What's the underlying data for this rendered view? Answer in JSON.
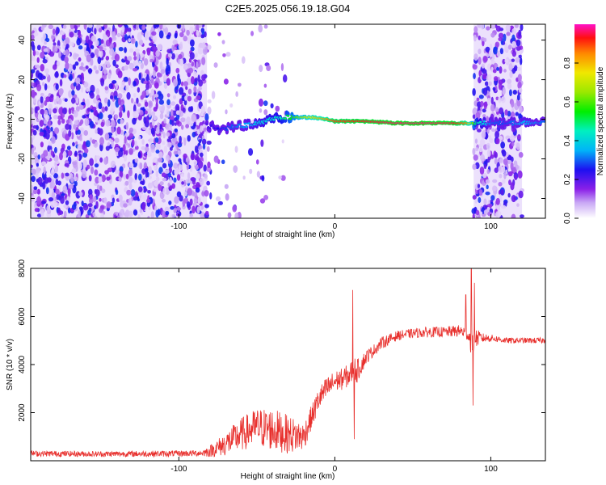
{
  "title": "C2E5.2025.056.19.18.G04",
  "chart_data": [
    {
      "type": "heatmap",
      "xlabel": "Height of straight line (km)",
      "ylabel": "Frequency (Hz)",
      "xlim": [
        -195,
        135
      ],
      "ylim": [
        -50,
        48
      ],
      "x_ticks": [
        -100,
        0,
        100
      ],
      "y_ticks": [
        -40,
        -20,
        0,
        20,
        40
      ],
      "colorbar": {
        "label": "Normalized spectral amplitude",
        "range": [
          0,
          1
        ],
        "ticks": [
          "0.0",
          "0.2",
          "0.4",
          "0.6",
          "0.8"
        ]
      },
      "noise_regions": [
        {
          "x_start": -195,
          "x_end": -82,
          "density": 0.9
        },
        {
          "x_start": -82,
          "x_end": -30,
          "density": 0.08
        },
        {
          "x_start": 89,
          "x_end": 120,
          "density": 0.85
        }
      ],
      "signal_track": [
        {
          "x": -82,
          "f": -3,
          "amp": 0.2
        },
        {
          "x": -75,
          "f": -5,
          "amp": 0.25
        },
        {
          "x": -65,
          "f": -4,
          "amp": 0.3
        },
        {
          "x": -55,
          "f": -3,
          "amp": 0.35
        },
        {
          "x": -45,
          "f": -1,
          "amp": 0.4
        },
        {
          "x": -35,
          "f": 1,
          "amp": 0.45
        },
        {
          "x": -25,
          "f": 1,
          "amp": 0.6
        },
        {
          "x": -15,
          "f": 1,
          "amp": 0.75
        },
        {
          "x": -5,
          "f": 0,
          "amp": 0.85
        },
        {
          "x": 0,
          "f": -1,
          "amp": 0.9
        },
        {
          "x": 10,
          "f": -1,
          "amp": 0.92
        },
        {
          "x": 20,
          "f": -1,
          "amp": 0.94
        },
        {
          "x": 40,
          "f": -2,
          "amp": 0.97
        },
        {
          "x": 60,
          "f": -2,
          "amp": 0.97
        },
        {
          "x": 75,
          "f": -2,
          "amp": 0.95
        },
        {
          "x": 85,
          "f": -2,
          "amp": 0.85
        },
        {
          "x": 90,
          "f": -2,
          "amp": 0.5
        },
        {
          "x": 100,
          "f": -2,
          "amp": 0.3
        },
        {
          "x": 110,
          "f": -2,
          "amp": 0.28
        },
        {
          "x": 120,
          "f": -2,
          "amp": 0.35
        },
        {
          "x": 135,
          "f": -2,
          "amp": 0.3
        }
      ]
    },
    {
      "type": "line",
      "xlabel": "Height of straight line (km)",
      "ylabel": "SNR (10 * v/v)",
      "xlim": [
        -195,
        135
      ],
      "ylim": [
        0,
        8000
      ],
      "x_ticks": [
        -100,
        0,
        100
      ],
      "y_ticks": [
        2000,
        4000,
        6000,
        8000
      ],
      "color": "#e8302d",
      "series": [
        {
          "x": [
            -195,
            -150,
            -100,
            -85,
            -80,
            -70,
            -60,
            -50,
            -40,
            -30,
            -20,
            -15,
            -10,
            -5,
            0,
            5,
            10,
            12,
            14,
            20,
            25,
            30,
            40,
            50,
            60,
            70,
            80,
            85,
            88,
            90,
            95,
            100,
            110,
            120,
            135
          ],
          "y": [
            300,
            280,
            300,
            320,
            400,
            700,
            1100,
            1400,
            1300,
            1100,
            1000,
            1800,
            2600,
            3000,
            3300,
            3400,
            3600,
            3900,
            3700,
            4300,
            4600,
            4900,
            5200,
            5300,
            5350,
            5350,
            5400,
            5300,
            4900,
            5100,
            5100,
            5100,
            5000,
            5000,
            5000
          ],
          "noise": [
            120,
            120,
            130,
            130,
            250,
            500,
            700,
            800,
            900,
            800,
            600,
            500,
            500,
            500,
            450,
            450,
            500,
            500,
            500,
            300,
            250,
            250,
            200,
            200,
            220,
            220,
            250,
            300,
            600,
            400,
            200,
            150,
            120,
            120,
            120
          ],
          "spikes": [
            {
              "x": 11.5,
              "y": 7100
            },
            {
              "x": 12.5,
              "y": 900
            },
            {
              "x": 87.5,
              "y": 8000
            },
            {
              "x": 88.5,
              "y": 2300
            },
            {
              "x": 84,
              "y": 6900
            },
            {
              "x": 89.5,
              "y": 7400
            }
          ]
        }
      ]
    }
  ]
}
